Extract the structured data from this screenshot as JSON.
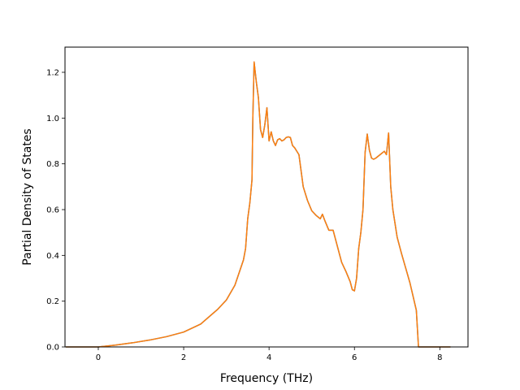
{
  "chart_data": {
    "type": "line",
    "title": "",
    "xlabel": "Frequency (THz)",
    "ylabel": "Partial Density of States",
    "xlim": [
      -0.78,
      8.66
    ],
    "ylim": [
      0.0,
      1.31
    ],
    "xticks": [
      0,
      2,
      4,
      6,
      8
    ],
    "yticks": [
      0.0,
      0.2,
      0.4,
      0.6,
      0.8,
      1.0,
      1.2
    ],
    "xtick_labels": [
      "0",
      "2",
      "4",
      "6",
      "8"
    ],
    "ytick_labels": [
      "0.0",
      "0.2",
      "0.4",
      "0.6",
      "0.8",
      "1.0",
      "1.2"
    ],
    "grid": false,
    "legend": "none",
    "series": [
      {
        "name": "",
        "color": "#1f77b4",
        "x": [
          -0.76,
          0.0,
          0.4,
          0.8,
          1.2,
          1.6,
          2.0,
          2.4,
          2.8,
          3.0,
          3.2,
          3.4,
          3.45,
          3.5,
          3.55,
          3.6,
          3.62,
          3.65,
          3.7,
          3.75,
          3.8,
          3.85,
          3.9,
          3.95,
          4.0,
          4.05,
          4.1,
          4.15,
          4.2,
          4.25,
          4.3,
          4.35,
          4.4,
          4.45,
          4.5,
          4.55,
          4.6,
          4.65,
          4.7,
          4.8,
          4.9,
          5.0,
          5.1,
          5.2,
          5.25,
          5.3,
          5.4,
          5.5,
          5.6,
          5.7,
          5.8,
          5.9,
          5.95,
          6.0,
          6.05,
          6.1,
          6.15,
          6.2,
          6.25,
          6.3,
          6.35,
          6.4,
          6.45,
          6.5,
          6.6,
          6.7,
          6.75,
          6.8,
          6.85,
          6.9,
          7.0,
          7.1,
          7.2,
          7.3,
          7.4,
          7.45,
          7.5,
          7.52,
          7.6,
          8.0,
          8.25
        ],
        "y": [
          0.0,
          0.0,
          0.008,
          0.018,
          0.03,
          0.045,
          0.065,
          0.1,
          0.165,
          0.205,
          0.27,
          0.38,
          0.43,
          0.56,
          0.63,
          0.73,
          1.0,
          1.245,
          1.16,
          1.09,
          0.95,
          0.915,
          0.97,
          1.045,
          0.9,
          0.94,
          0.9,
          0.88,
          0.905,
          0.91,
          0.9,
          0.905,
          0.915,
          0.918,
          0.915,
          0.88,
          0.87,
          0.855,
          0.84,
          0.7,
          0.64,
          0.595,
          0.575,
          0.56,
          0.58,
          0.555,
          0.51,
          0.51,
          0.44,
          0.37,
          0.33,
          0.285,
          0.25,
          0.245,
          0.3,
          0.43,
          0.5,
          0.6,
          0.85,
          0.93,
          0.86,
          0.825,
          0.82,
          0.825,
          0.84,
          0.855,
          0.84,
          0.935,
          0.7,
          0.6,
          0.48,
          0.41,
          0.345,
          0.28,
          0.2,
          0.16,
          0.0,
          0.0,
          0.0,
          0.0,
          0.0
        ]
      },
      {
        "name": "",
        "color": "#ff7f0e",
        "x": [
          -0.76,
          0.0,
          0.4,
          0.8,
          1.2,
          1.6,
          2.0,
          2.4,
          2.8,
          3.0,
          3.2,
          3.4,
          3.45,
          3.5,
          3.55,
          3.6,
          3.62,
          3.65,
          3.7,
          3.75,
          3.8,
          3.85,
          3.9,
          3.95,
          4.0,
          4.05,
          4.1,
          4.15,
          4.2,
          4.25,
          4.3,
          4.35,
          4.4,
          4.45,
          4.5,
          4.55,
          4.6,
          4.65,
          4.7,
          4.8,
          4.9,
          5.0,
          5.1,
          5.2,
          5.25,
          5.3,
          5.4,
          5.5,
          5.6,
          5.7,
          5.8,
          5.9,
          5.95,
          6.0,
          6.05,
          6.1,
          6.15,
          6.2,
          6.25,
          6.3,
          6.35,
          6.4,
          6.45,
          6.5,
          6.6,
          6.7,
          6.75,
          6.8,
          6.85,
          6.9,
          7.0,
          7.1,
          7.2,
          7.3,
          7.4,
          7.45,
          7.5,
          7.52,
          7.6,
          8.0,
          8.25
        ],
        "y": [
          0.0,
          0.0,
          0.008,
          0.018,
          0.03,
          0.045,
          0.065,
          0.1,
          0.165,
          0.205,
          0.27,
          0.38,
          0.43,
          0.56,
          0.63,
          0.73,
          1.0,
          1.245,
          1.16,
          1.09,
          0.95,
          0.915,
          0.97,
          1.045,
          0.9,
          0.94,
          0.9,
          0.88,
          0.905,
          0.91,
          0.9,
          0.905,
          0.915,
          0.918,
          0.915,
          0.88,
          0.87,
          0.855,
          0.84,
          0.7,
          0.64,
          0.595,
          0.575,
          0.56,
          0.58,
          0.555,
          0.51,
          0.51,
          0.44,
          0.37,
          0.33,
          0.285,
          0.25,
          0.245,
          0.3,
          0.43,
          0.5,
          0.6,
          0.85,
          0.93,
          0.86,
          0.825,
          0.82,
          0.825,
          0.84,
          0.855,
          0.84,
          0.935,
          0.7,
          0.6,
          0.48,
          0.41,
          0.345,
          0.28,
          0.2,
          0.16,
          0.0,
          0.0,
          0.0,
          0.0,
          0.0
        ]
      }
    ]
  }
}
